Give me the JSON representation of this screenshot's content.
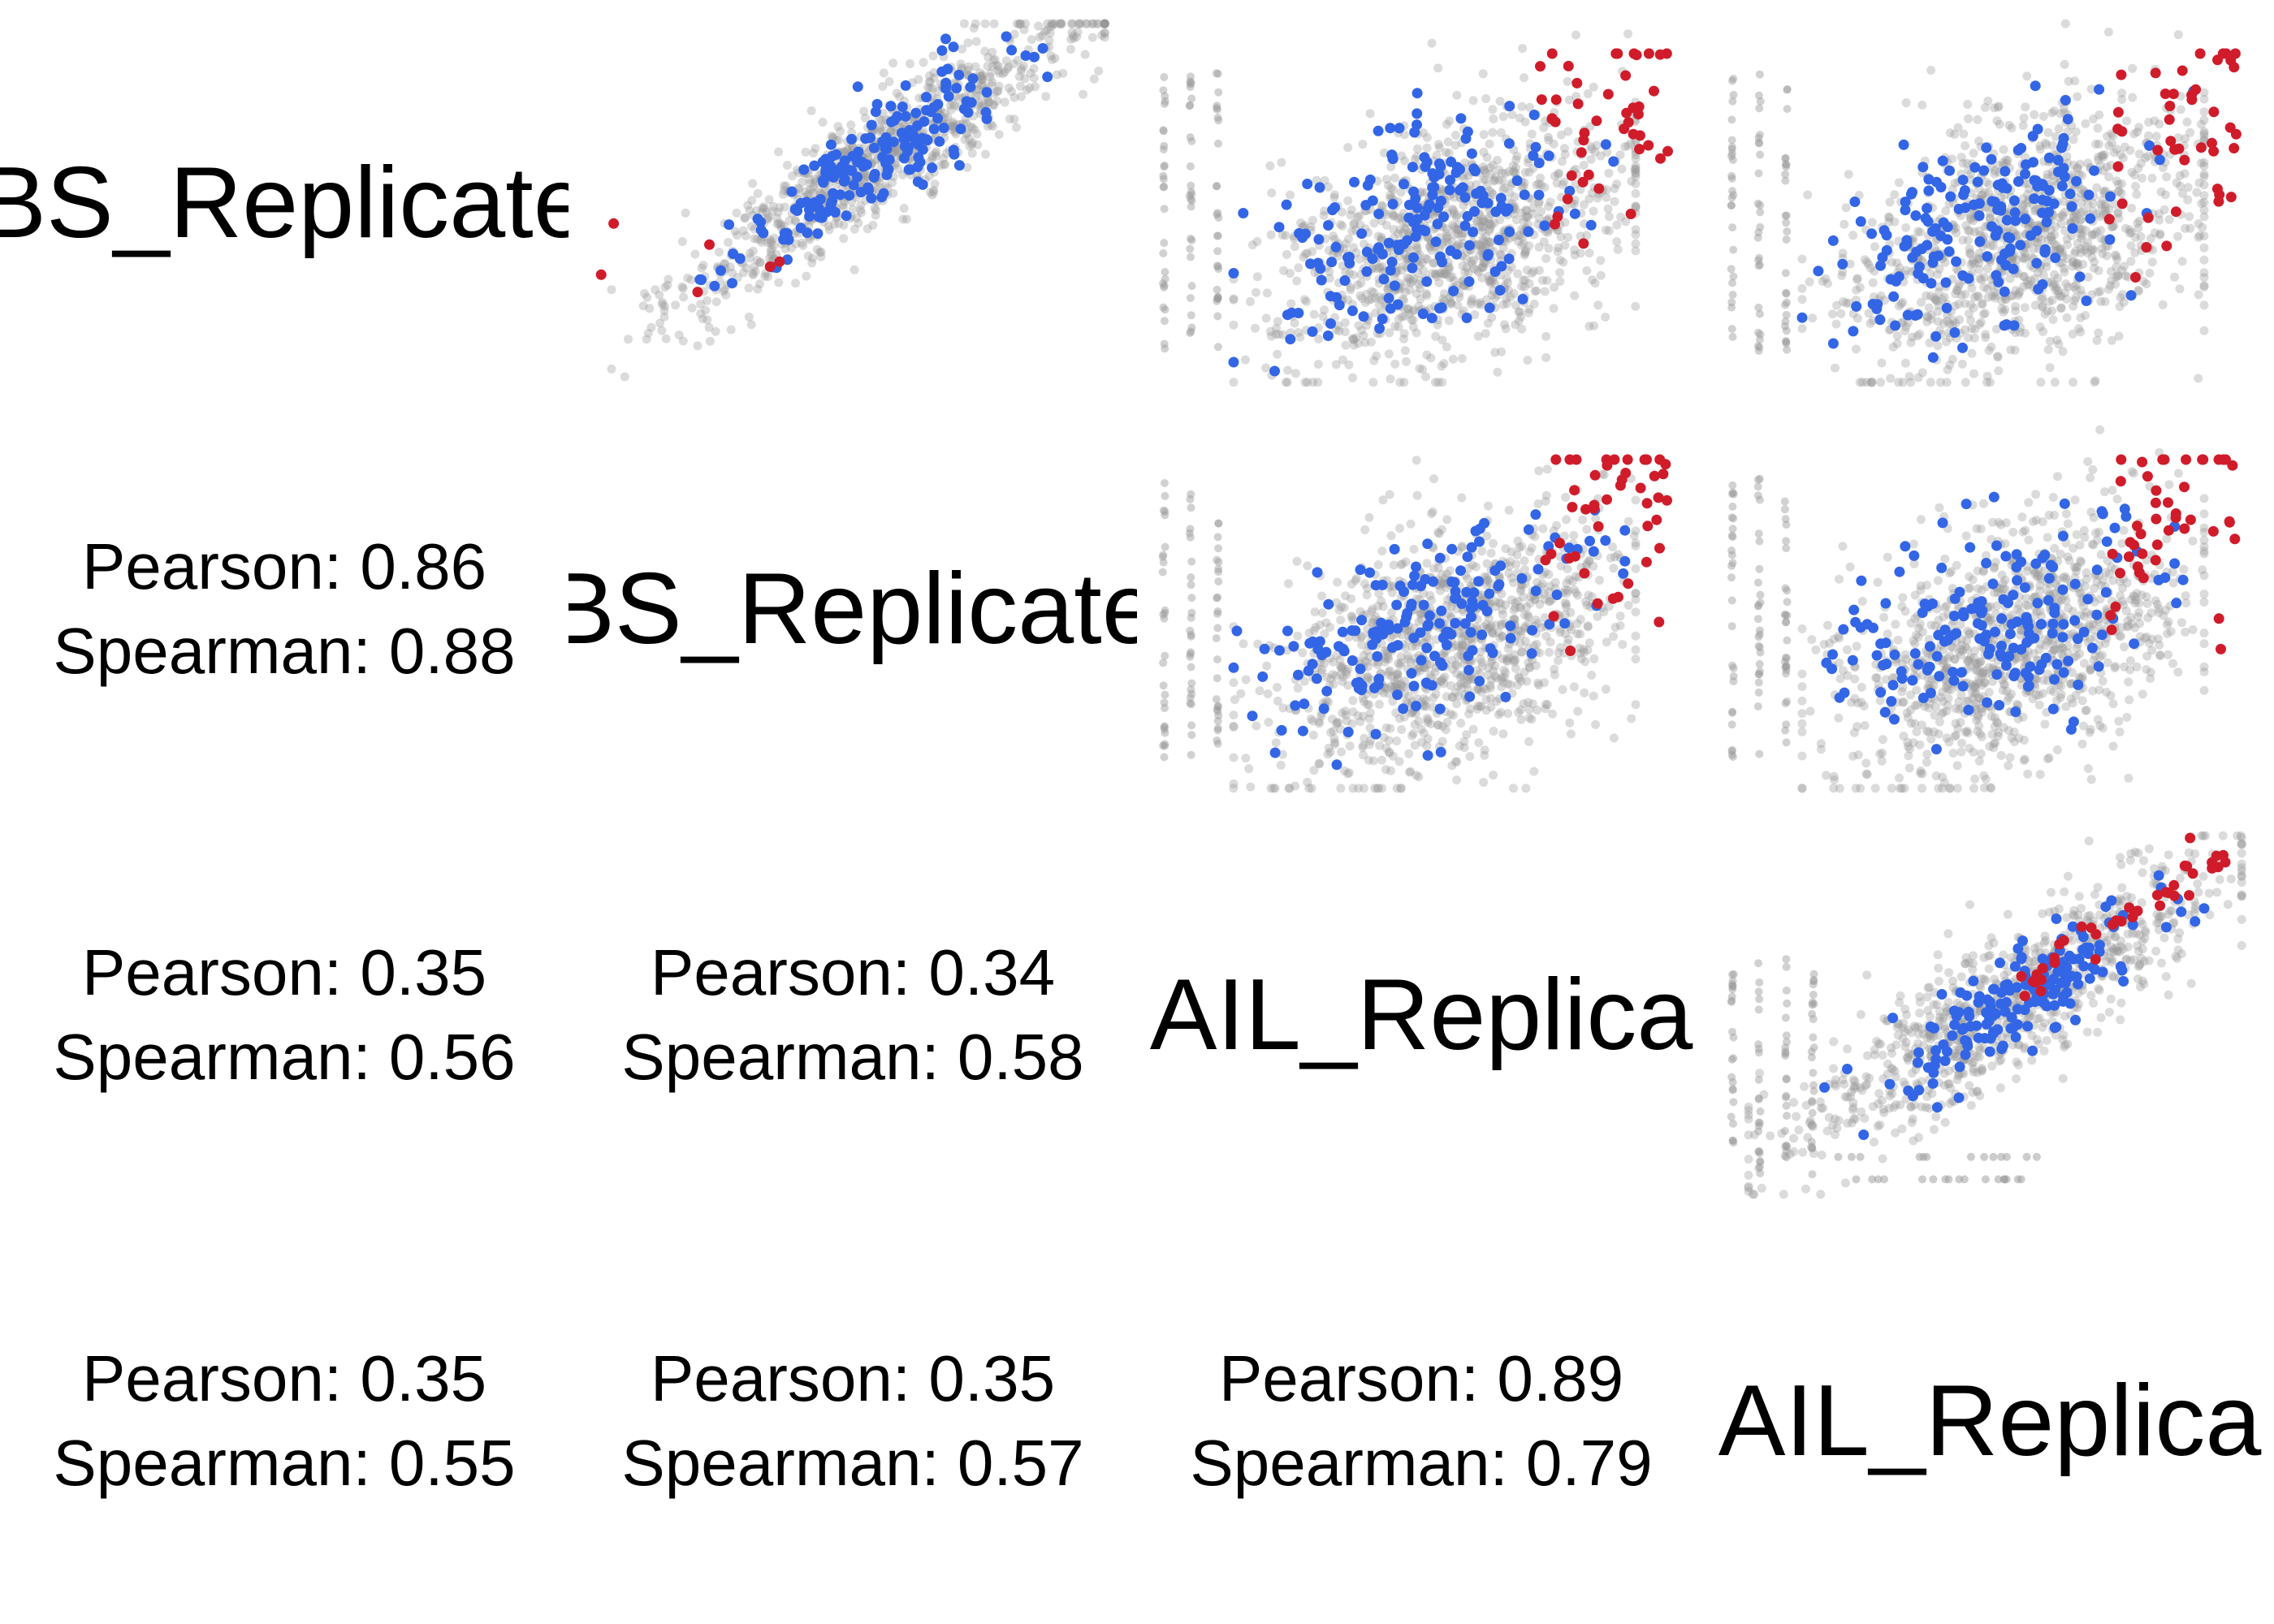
{
  "chart_data": {
    "type": "scatter",
    "layout": "pairs-matrix",
    "variables": [
      "BS_Replicate",
      "BS_Replicate",
      "AIL_Replica",
      "AIL_Replica"
    ],
    "colors": {
      "background_points": "#999999",
      "blue_points": "#3366e6",
      "red_points": "#d01c2a"
    },
    "correlations": [
      {
        "row": 1,
        "col": 0,
        "pearson": "Pearson: 0.86",
        "spearman": "Spearman: 0.88"
      },
      {
        "row": 2,
        "col": 0,
        "pearson": "Pearson: 0.35",
        "spearman": "Spearman: 0.56"
      },
      {
        "row": 2,
        "col": 1,
        "pearson": "Pearson: 0.34",
        "spearman": "Spearman: 0.58"
      },
      {
        "row": 3,
        "col": 0,
        "pearson": "Pearson: 0.35",
        "spearman": "Spearman: 0.55"
      },
      {
        "row": 3,
        "col": 1,
        "pearson": "Pearson: 0.35",
        "spearman": "Spearman: 0.57"
      },
      {
        "row": 3,
        "col": 2,
        "pearson": "Pearson: 0.89",
        "spearman": "Spearman: 0.79"
      }
    ],
    "panels": [
      {
        "row": 0,
        "col": 1,
        "shape": "tight",
        "slope": 1.0,
        "spread": 0.08,
        "red": "sparse"
      },
      {
        "row": 0,
        "col": 2,
        "shape": "wide",
        "slope": 0.45,
        "spread": 0.16,
        "red": "right"
      },
      {
        "row": 0,
        "col": 3,
        "shape": "wide",
        "slope": 0.45,
        "spread": 0.16,
        "red": "right"
      },
      {
        "row": 1,
        "col": 2,
        "shape": "wide",
        "slope": 0.45,
        "spread": 0.16,
        "red": "right"
      },
      {
        "row": 1,
        "col": 3,
        "shape": "wide",
        "slope": 0.45,
        "spread": 0.16,
        "red": "right"
      },
      {
        "row": 2,
        "col": 3,
        "shape": "tight",
        "slope": 0.85,
        "spread": 0.1,
        "red": "upper"
      }
    ]
  }
}
